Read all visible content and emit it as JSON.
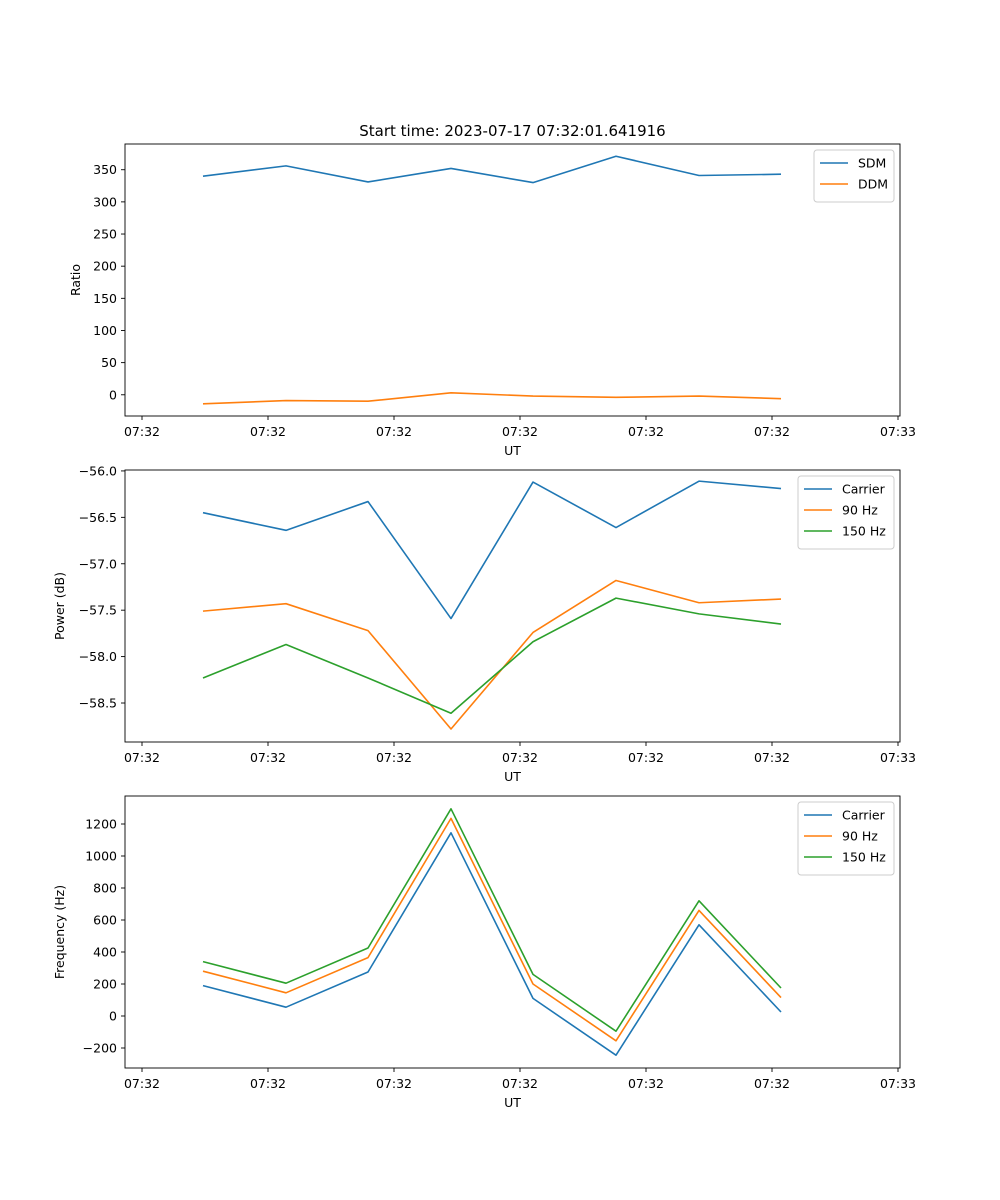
{
  "chart_data": [
    {
      "type": "line",
      "title": "Start time: 2023-07-17 07:32:01.641916",
      "xlabel": "UT",
      "ylabel": "Ratio",
      "ylim": [
        -33,
        390
      ],
      "yticks": [
        0,
        50,
        100,
        150,
        200,
        250,
        300,
        350
      ],
      "xticklabels": [
        "07:32",
        "07:32",
        "07:32",
        "07:32",
        "07:32",
        "07:32",
        "07:33"
      ],
      "legend": "top-right",
      "series": [
        {
          "name": "SDM",
          "color": "#1f77b4",
          "values": [
            340,
            356,
            331,
            352,
            330,
            371,
            341,
            343
          ]
        },
        {
          "name": "DDM",
          "color": "#ff7f0e",
          "values": [
            -14,
            -9,
            -10,
            3,
            -2,
            -4,
            -2,
            -6
          ]
        }
      ]
    },
    {
      "type": "line",
      "title": "",
      "xlabel": "UT",
      "ylabel": "Power (dB)",
      "ylim": [
        -58.92,
        -55.99
      ],
      "yticks": [
        -58.5,
        -58.0,
        -57.5,
        -57.0,
        -56.5,
        -56.0
      ],
      "xticklabels": [
        "07:32",
        "07:32",
        "07:32",
        "07:32",
        "07:32",
        "07:32",
        "07:33"
      ],
      "legend": "top-right",
      "series": [
        {
          "name": "Carrier",
          "color": "#1f77b4",
          "values": [
            -56.45,
            -56.64,
            -56.33,
            -57.59,
            -56.12,
            -56.61,
            -56.11,
            -56.19
          ]
        },
        {
          "name": "90 Hz",
          "color": "#ff7f0e",
          "values": [
            -57.51,
            -57.43,
            -57.72,
            -58.78,
            -57.74,
            -57.18,
            -57.42,
            -57.38
          ]
        },
        {
          "name": "150 Hz",
          "color": "#2ca02c",
          "values": [
            -58.23,
            -57.87,
            -58.23,
            -58.61,
            -57.84,
            -57.37,
            -57.54,
            -57.65
          ]
        }
      ]
    },
    {
      "type": "line",
      "title": "",
      "xlabel": "UT",
      "ylabel": "Frequency (Hz)",
      "ylim": [
        -325,
        1375
      ],
      "yticks": [
        -200,
        0,
        200,
        400,
        600,
        800,
        1000,
        1200
      ],
      "xticklabels": [
        "07:32",
        "07:32",
        "07:32",
        "07:32",
        "07:32",
        "07:32",
        "07:33"
      ],
      "legend": "top-right",
      "series": [
        {
          "name": "Carrier",
          "color": "#1f77b4",
          "values": [
            190,
            55,
            275,
            1145,
            110,
            -245,
            570,
            25
          ]
        },
        {
          "name": "90 Hz",
          "color": "#ff7f0e",
          "values": [
            280,
            145,
            365,
            1235,
            200,
            -155,
            660,
            115
          ]
        },
        {
          "name": "150 Hz",
          "color": "#2ca02c",
          "values": [
            340,
            205,
            425,
            1295,
            260,
            -95,
            720,
            175
          ]
        }
      ]
    }
  ]
}
